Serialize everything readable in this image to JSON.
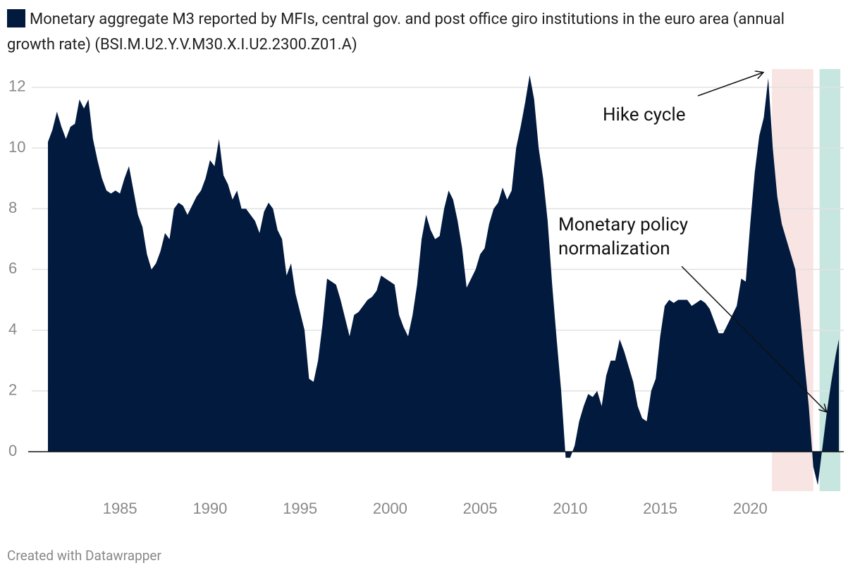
{
  "chart_data": {
    "type": "area",
    "series": [
      {
        "name": "Monetary aggregate M3 reported by MFIs, central gov. and post office giro institutions in the euro area (annual growth rate) (BSI.M.U2.Y.V.M30.X.I.U2.2300.Z01.A)",
        "color": "#021a3e",
        "values": [
          10.2,
          10.6,
          11.2,
          10.7,
          10.3,
          10.7,
          10.8,
          11.6,
          11.3,
          11.6,
          10.3,
          9.6,
          9.0,
          8.6,
          8.5,
          8.6,
          8.5,
          9.0,
          9.4,
          8.6,
          7.8,
          7.4,
          6.5,
          6.0,
          6.2,
          6.6,
          7.2,
          7.0,
          8.0,
          8.2,
          8.1,
          7.8,
          8.1,
          8.4,
          8.6,
          9.0,
          9.6,
          9.4,
          10.3,
          9.1,
          8.8,
          8.3,
          8.6,
          8.0,
          8.0,
          7.8,
          7.6,
          7.2,
          7.9,
          8.2,
          8.0,
          7.3,
          7.0,
          5.8,
          6.2,
          5.2,
          4.6,
          4.0,
          2.4,
          2.3,
          3.0,
          4.2,
          5.7,
          5.6,
          5.5,
          5.0,
          4.4,
          3.8,
          4.5,
          4.6,
          4.8,
          5.0,
          5.1,
          5.3,
          5.8,
          5.7,
          5.6,
          5.5,
          4.5,
          4.1,
          3.8,
          4.5,
          5.5,
          7.0,
          7.8,
          7.3,
          7.0,
          7.1,
          8.0,
          8.6,
          8.3,
          7.6,
          6.7,
          5.4,
          5.7,
          6.0,
          6.5,
          6.7,
          7.5,
          8.0,
          8.2,
          8.7,
          8.3,
          8.6,
          10.0,
          10.7,
          11.5,
          12.4,
          11.6,
          10.0,
          9.0,
          7.6,
          5.5,
          3.7,
          2.0,
          -0.2,
          -0.2,
          0.2,
          1.0,
          1.5,
          1.9,
          1.8,
          2.0,
          1.5,
          2.5,
          3.0,
          3.0,
          3.7,
          3.3,
          2.8,
          2.3,
          1.5,
          1.1,
          1.0,
          2.0,
          2.4,
          3.8,
          4.8,
          5.0,
          4.9,
          5.0,
          5.0,
          5.0,
          4.8,
          4.9,
          5.0,
          4.9,
          4.7,
          4.3,
          3.9,
          3.9,
          4.2,
          4.5,
          4.8,
          5.7,
          5.6,
          7.5,
          9.2,
          10.4,
          11.0,
          12.3,
          10.0,
          8.4,
          7.5,
          7.0,
          6.5,
          6.0,
          4.6,
          3.0,
          1.5,
          -0.5,
          -1.1,
          0.1,
          1.3,
          2.3,
          3.2,
          3.7
        ]
      }
    ],
    "x": [
      1981,
      1981.25,
      1981.5,
      1981.75,
      1982,
      1982.25,
      1982.5,
      1982.75,
      1983,
      1983.25,
      1983.5,
      1983.75,
      1984,
      1984.25,
      1984.5,
      1984.75,
      1985,
      1985.25,
      1985.5,
      1985.75,
      1986,
      1986.25,
      1986.5,
      1986.75,
      1987,
      1987.25,
      1987.5,
      1987.75,
      1988,
      1988.25,
      1988.5,
      1988.75,
      1989,
      1989.25,
      1989.5,
      1989.75,
      1990,
      1990.25,
      1990.5,
      1990.75,
      1991,
      1991.25,
      1991.5,
      1991.75,
      1992,
      1992.25,
      1992.5,
      1992.75,
      1993,
      1993.25,
      1993.5,
      1993.75,
      1994,
      1994.25,
      1994.5,
      1994.75,
      1995,
      1995.25,
      1995.5,
      1995.75,
      1996,
      1996.25,
      1996.5,
      1996.75,
      1997,
      1997.25,
      1997.5,
      1997.75,
      1998,
      1998.25,
      1998.5,
      1998.75,
      1999,
      1999.25,
      1999.5,
      1999.75,
      2000,
      2000.25,
      2000.5,
      2000.75,
      2001,
      2001.25,
      2001.5,
      2001.75,
      2002,
      2002.25,
      2002.5,
      2002.75,
      2003,
      2003.25,
      2003.5,
      2003.75,
      2004,
      2004.25,
      2004.5,
      2004.75,
      2005,
      2005.25,
      2005.5,
      2005.75,
      2006,
      2006.25,
      2006.5,
      2006.75,
      2007,
      2007.25,
      2007.5,
      2007.75,
      2008,
      2008.25,
      2008.5,
      2008.75,
      2009,
      2009.25,
      2009.5,
      2009.75,
      2010,
      2010.25,
      2010.5,
      2010.75,
      2011,
      2011.25,
      2011.5,
      2011.75,
      2012,
      2012.25,
      2012.5,
      2012.75,
      2013,
      2013.25,
      2013.5,
      2013.75,
      2014,
      2014.25,
      2014.5,
      2014.75,
      2015,
      2015.25,
      2015.5,
      2015.75,
      2016,
      2016.25,
      2016.5,
      2016.75,
      2017,
      2017.25,
      2017.5,
      2017.75,
      2018,
      2018.25,
      2018.5,
      2018.75,
      2019,
      2019.25,
      2019.5,
      2019.75,
      2020,
      2020.25,
      2020.5,
      2020.75,
      2021,
      2021.25,
      2021.5,
      2021.75,
      2022,
      2022.25,
      2022.5,
      2022.75,
      2023,
      2023.25,
      2023.5,
      2023.75,
      2024,
      2024.25,
      2024.5,
      2024.75,
      2024.92
    ],
    "xlim": [
      1981,
      2024.92
    ],
    "xticks": [
      1985,
      1990,
      1995,
      2000,
      2005,
      2010,
      2015,
      2020
    ],
    "ylim": [
      -1.3,
      12.6
    ],
    "yticks": [
      0,
      2,
      4,
      6,
      8,
      10,
      12
    ],
    "grid": true,
    "bands": [
      {
        "start": 2021.2,
        "end": 2023.5,
        "color": "#f8e4e3"
      },
      {
        "start": 2023.85,
        "end": 2025,
        "color": "#c8e6e0"
      }
    ],
    "annotations": [
      {
        "text": "Hike cycle"
      },
      {
        "text": "Monetary policy normalization"
      }
    ],
    "footer": "Created with Datawrapper"
  }
}
